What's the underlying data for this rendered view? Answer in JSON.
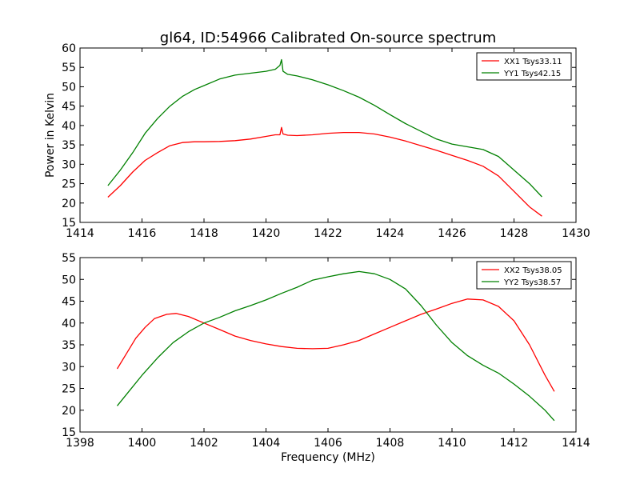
{
  "figure": {
    "title": "gl64, ID:54966 Calibrated On-source spectrum"
  },
  "chart_data": [
    {
      "type": "line",
      "title": "gl64, ID:54966 Calibrated On-source spectrum",
      "xlabel": "",
      "ylabel": "Power in Kelvin",
      "xlim": [
        1414,
        1430
      ],
      "ylim": [
        15,
        60
      ],
      "xticks": [
        1414,
        1416,
        1418,
        1420,
        1422,
        1424,
        1426,
        1428,
        1430
      ],
      "yticks": [
        15,
        20,
        25,
        30,
        35,
        40,
        45,
        50,
        55,
        60
      ],
      "grid": false,
      "legend_position": "top-right",
      "series": [
        {
          "name": "XX1 Tsys33.11",
          "color": "#ff0000",
          "points": [
            [
              1414.9,
              21.5
            ],
            [
              1415.3,
              24.5
            ],
            [
              1415.7,
              28
            ],
            [
              1416.1,
              31
            ],
            [
              1416.5,
              33
            ],
            [
              1416.9,
              34.8
            ],
            [
              1417.3,
              35.6
            ],
            [
              1417.7,
              35.8
            ],
            [
              1418.0,
              35.8
            ],
            [
              1418.5,
              35.9
            ],
            [
              1419.0,
              36.1
            ],
            [
              1419.5,
              36.5
            ],
            [
              1420.0,
              37.2
            ],
            [
              1420.3,
              37.6
            ],
            [
              1420.45,
              37.6
            ],
            [
              1420.5,
              39.5
            ],
            [
              1420.55,
              37.8
            ],
            [
              1420.7,
              37.5
            ],
            [
              1421.0,
              37.4
            ],
            [
              1421.5,
              37.6
            ],
            [
              1422.0,
              38
            ],
            [
              1422.5,
              38.2
            ],
            [
              1423.0,
              38.2
            ],
            [
              1423.5,
              37.8
            ],
            [
              1424.0,
              37
            ],
            [
              1424.5,
              36
            ],
            [
              1425.0,
              34.8
            ],
            [
              1425.5,
              33.6
            ],
            [
              1426.0,
              32.3
            ],
            [
              1426.5,
              31
            ],
            [
              1427.0,
              29.5
            ],
            [
              1427.5,
              27
            ],
            [
              1428.0,
              23
            ],
            [
              1428.5,
              19
            ],
            [
              1428.9,
              16.6
            ]
          ]
        },
        {
          "name": "YY1 Tsys42.15",
          "color": "#008000",
          "points": [
            [
              1414.9,
              24.5
            ],
            [
              1415.3,
              28.5
            ],
            [
              1415.7,
              33
            ],
            [
              1416.1,
              38
            ],
            [
              1416.5,
              41.8
            ],
            [
              1416.9,
              45
            ],
            [
              1417.3,
              47.5
            ],
            [
              1417.7,
              49.3
            ],
            [
              1418.0,
              50.3
            ],
            [
              1418.5,
              52
            ],
            [
              1419.0,
              53
            ],
            [
              1419.5,
              53.5
            ],
            [
              1420.0,
              54
            ],
            [
              1420.3,
              54.5
            ],
            [
              1420.45,
              55.5
            ],
            [
              1420.5,
              57
            ],
            [
              1420.55,
              54
            ],
            [
              1420.7,
              53.2
            ],
            [
              1421.0,
              52.8
            ],
            [
              1421.5,
              51.8
            ],
            [
              1422.0,
              50.5
            ],
            [
              1422.5,
              49
            ],
            [
              1423.0,
              47.3
            ],
            [
              1423.5,
              45.2
            ],
            [
              1424.0,
              42.8
            ],
            [
              1424.5,
              40.5
            ],
            [
              1425.0,
              38.5
            ],
            [
              1425.5,
              36.5
            ],
            [
              1426.0,
              35.2
            ],
            [
              1426.5,
              34.5
            ],
            [
              1427.0,
              33.8
            ],
            [
              1427.5,
              32
            ],
            [
              1428.0,
              28.5
            ],
            [
              1428.5,
              25
            ],
            [
              1428.9,
              21.6
            ]
          ]
        }
      ]
    },
    {
      "type": "line",
      "title": "",
      "xlabel": "Frequency (MHz)",
      "ylabel": "",
      "xlim": [
        1398,
        1414
      ],
      "ylim": [
        15,
        55
      ],
      "xticks": [
        1398,
        1400,
        1402,
        1404,
        1406,
        1408,
        1410,
        1412,
        1414
      ],
      "yticks": [
        15,
        20,
        25,
        30,
        35,
        40,
        45,
        50,
        55
      ],
      "grid": false,
      "legend_position": "top-right",
      "series": [
        {
          "name": "XX2 Tsys38.05",
          "color": "#ff0000",
          "points": [
            [
              1399.2,
              29.5
            ],
            [
              1399.5,
              33
            ],
            [
              1399.8,
              36.5
            ],
            [
              1400.1,
              39
            ],
            [
              1400.4,
              41
            ],
            [
              1400.8,
              42
            ],
            [
              1401.1,
              42.2
            ],
            [
              1401.5,
              41.5
            ],
            [
              1402.0,
              40
            ],
            [
              1402.5,
              38.5
            ],
            [
              1403.0,
              37
            ],
            [
              1403.5,
              36
            ],
            [
              1404.0,
              35.2
            ],
            [
              1404.5,
              34.6
            ],
            [
              1405.0,
              34.2
            ],
            [
              1405.5,
              34.1
            ],
            [
              1406.0,
              34.2
            ],
            [
              1406.5,
              35
            ],
            [
              1407.0,
              36
            ],
            [
              1407.5,
              37.5
            ],
            [
              1408.0,
              39
            ],
            [
              1408.5,
              40.5
            ],
            [
              1409.0,
              42
            ],
            [
              1409.5,
              43.2
            ],
            [
              1410.0,
              44.5
            ],
            [
              1410.5,
              45.5
            ],
            [
              1411.0,
              45.3
            ],
            [
              1411.5,
              43.8
            ],
            [
              1412.0,
              40.5
            ],
            [
              1412.5,
              35
            ],
            [
              1413.0,
              28
            ],
            [
              1413.3,
              24.3
            ]
          ]
        },
        {
          "name": "YY2 Tsys38.57",
          "color": "#008000",
          "points": [
            [
              1399.2,
              21
            ],
            [
              1399.6,
              24.5
            ],
            [
              1400.0,
              28
            ],
            [
              1400.5,
              32
            ],
            [
              1401.0,
              35.5
            ],
            [
              1401.5,
              38
            ],
            [
              1402.0,
              40
            ],
            [
              1402.5,
              41.3
            ],
            [
              1403.0,
              42.8
            ],
            [
              1403.5,
              44
            ],
            [
              1404.0,
              45.3
            ],
            [
              1404.5,
              46.8
            ],
            [
              1405.0,
              48.2
            ],
            [
              1405.5,
              49.8
            ],
            [
              1406.0,
              50.6
            ],
            [
              1406.5,
              51.3
            ],
            [
              1407.0,
              51.8
            ],
            [
              1407.5,
              51.3
            ],
            [
              1408.0,
              50
            ],
            [
              1408.5,
              47.8
            ],
            [
              1409.0,
              44
            ],
            [
              1409.5,
              39.5
            ],
            [
              1410.0,
              35.5
            ],
            [
              1410.5,
              32.5
            ],
            [
              1411.0,
              30.3
            ],
            [
              1411.5,
              28.5
            ],
            [
              1412.0,
              26
            ],
            [
              1412.5,
              23.2
            ],
            [
              1413.0,
              20
            ],
            [
              1413.3,
              17.6
            ]
          ]
        }
      ]
    }
  ]
}
